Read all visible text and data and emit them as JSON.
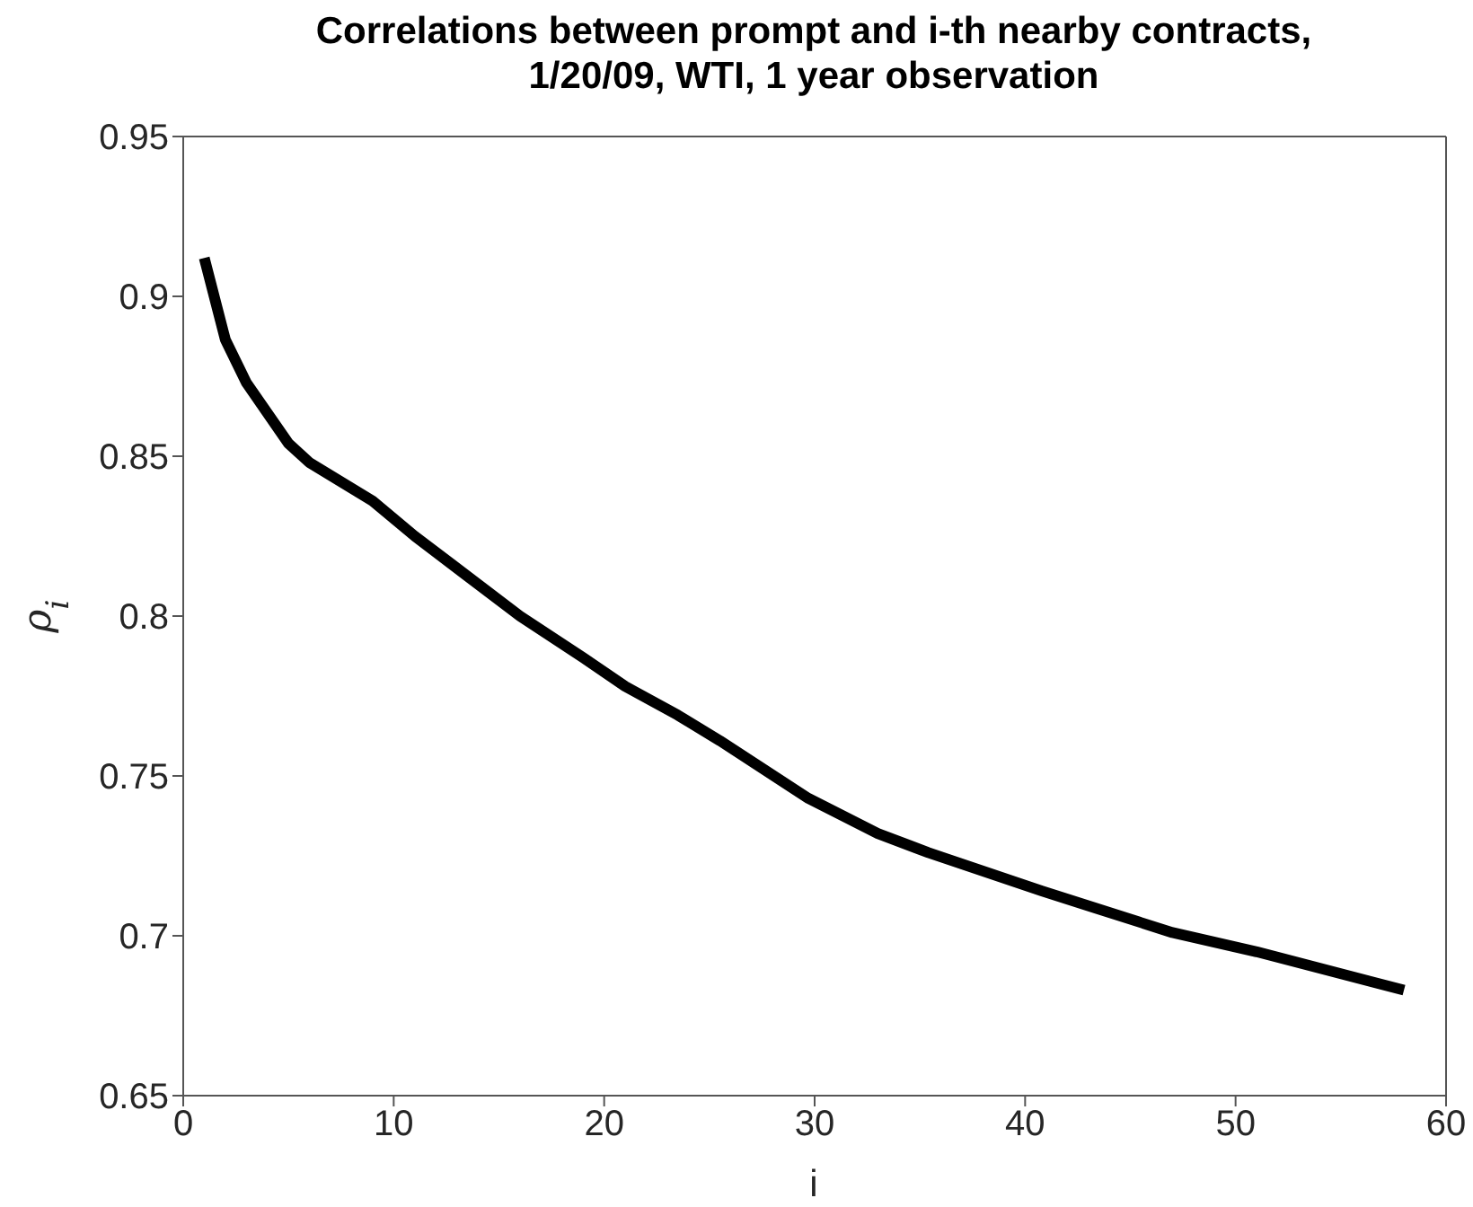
{
  "chart_data": {
    "type": "line",
    "title": "Correlations between prompt and i-th nearby contracts,\n1/20/09, WTI, 1 year observation",
    "xlabel": "i",
    "ylabel": "ρ$_{i}$",
    "x": [
      1,
      2,
      3,
      5,
      6,
      9,
      11,
      16,
      19,
      21,
      23.5,
      25.5,
      29.7,
      33,
      35.4,
      40.8,
      47,
      51,
      58
    ],
    "series": [
      {
        "color": "#000000",
        "values": [
          0.912,
          0.8865,
          0.873,
          0.854,
          0.848,
          0.836,
          0.825,
          0.8,
          0.787,
          0.778,
          0.769,
          0.761,
          0.743,
          0.732,
          0.726,
          0.714,
          0.701,
          0.695,
          0.683
        ]
      }
    ],
    "xlim": [
      0,
      60
    ],
    "xticks": [
      0,
      10,
      20,
      30,
      40,
      50,
      60
    ],
    "ylim": [
      0.65,
      0.95
    ],
    "yticks": [
      0.65,
      0.7,
      0.75,
      0.8,
      0.85,
      0.9,
      0.95
    ],
    "grid": false,
    "legend": false,
    "marker": "none",
    "line_style": "solid"
  }
}
